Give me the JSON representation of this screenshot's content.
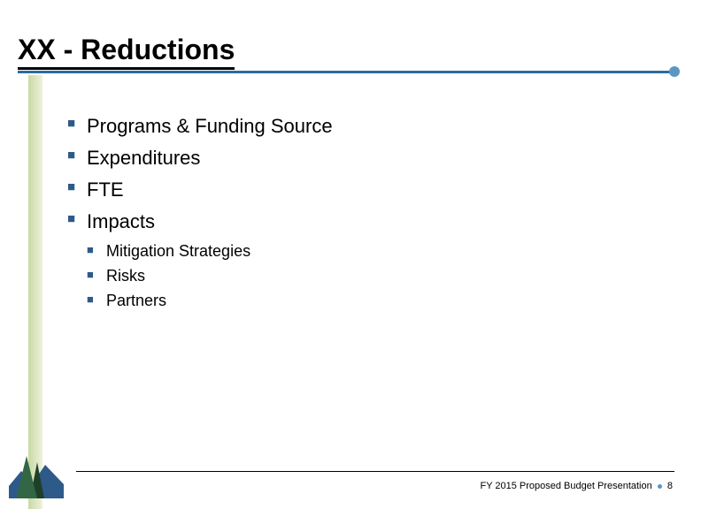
{
  "colors": {
    "accent_blue": "#2e6b9e",
    "accent_dot": "#5a96c4",
    "bullet_blue": "#2e5a8a",
    "sidebar_dark": "#c9d9a3",
    "sidebar_light": "#eef2dc",
    "tree_green": "#336644",
    "tree_dark": "#1f4028",
    "ridge_blue": "#2e5a8a",
    "footer_dot": "#5a96c4"
  },
  "title": "XX - Reductions",
  "bullets": [
    {
      "label": "Programs & Funding Source"
    },
    {
      "label": "Expenditures"
    },
    {
      "label": "FTE"
    },
    {
      "label": "Impacts",
      "children": [
        {
          "label": "Mitigation Strategies"
        },
        {
          "label": "Risks"
        },
        {
          "label": "Partners"
        }
      ]
    }
  ],
  "footer": {
    "text_left": "FY 2015 Proposed Budget Presentation",
    "page": "8"
  }
}
